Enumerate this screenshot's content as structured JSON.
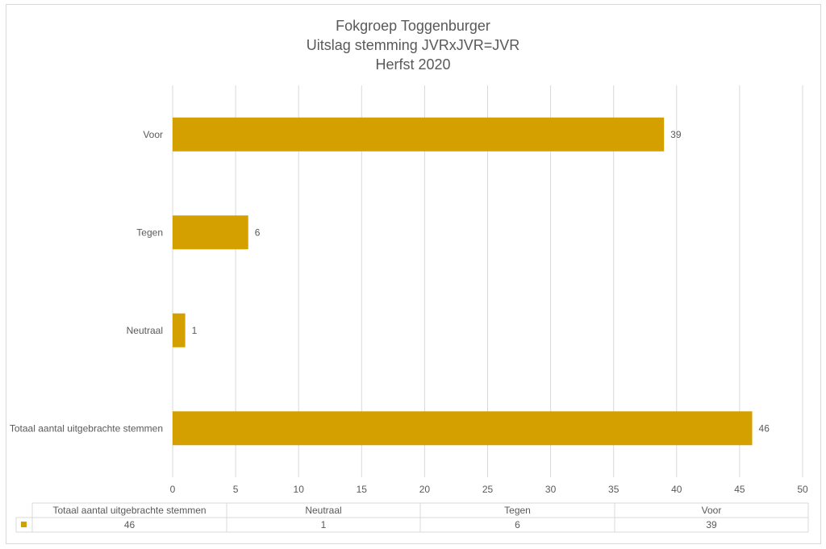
{
  "chart_data": {
    "type": "bar",
    "orientation": "horizontal",
    "title": [
      "Fokgroep Toggenburger",
      "Uitslag stemming JVRxJVR=JVR",
      "Herfst 2020"
    ],
    "categories": [
      "Voor",
      "Tegen",
      "Neutraal",
      "Totaal aantal uitgebrachte stemmen"
    ],
    "values": [
      39,
      6,
      1,
      46
    ],
    "xlim": [
      0,
      50
    ],
    "xticks": [
      0,
      5,
      10,
      15,
      20,
      25,
      30,
      35,
      40,
      45,
      50
    ],
    "grid": true,
    "data_labels": true,
    "bar_color": "#D4A000",
    "data_table": {
      "headers": [
        "Totaal aantal uitgebrachte stemmen",
        "Neutraal",
        "Tegen",
        "Voor"
      ],
      "values": [
        "46",
        "1",
        "6",
        "39"
      ]
    }
  }
}
